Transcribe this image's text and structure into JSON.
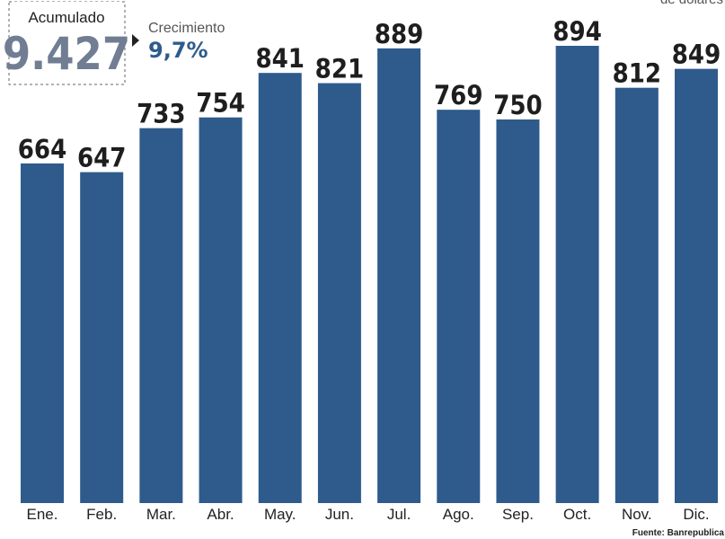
{
  "chart_data": {
    "type": "bar",
    "subtitle": "de dólares",
    "categories": [
      "Ene.",
      "Feb.",
      "Mar.",
      "Abr.",
      "May.",
      "Jun.",
      "Jul.",
      "Ago.",
      "Sep.",
      "Oct.",
      "Nov.",
      "Dic."
    ],
    "values": [
      664,
      647,
      733,
      754,
      841,
      821,
      889,
      769,
      750,
      894,
      812,
      849
    ],
    "color": "#2e5b8c",
    "annotations": {
      "accumulated_label": "Acumulado",
      "accumulated_value": "9.427",
      "growth_label": "Crecimiento",
      "growth_value": "9,7%"
    },
    "source": "Fuente: Banrepublica"
  }
}
